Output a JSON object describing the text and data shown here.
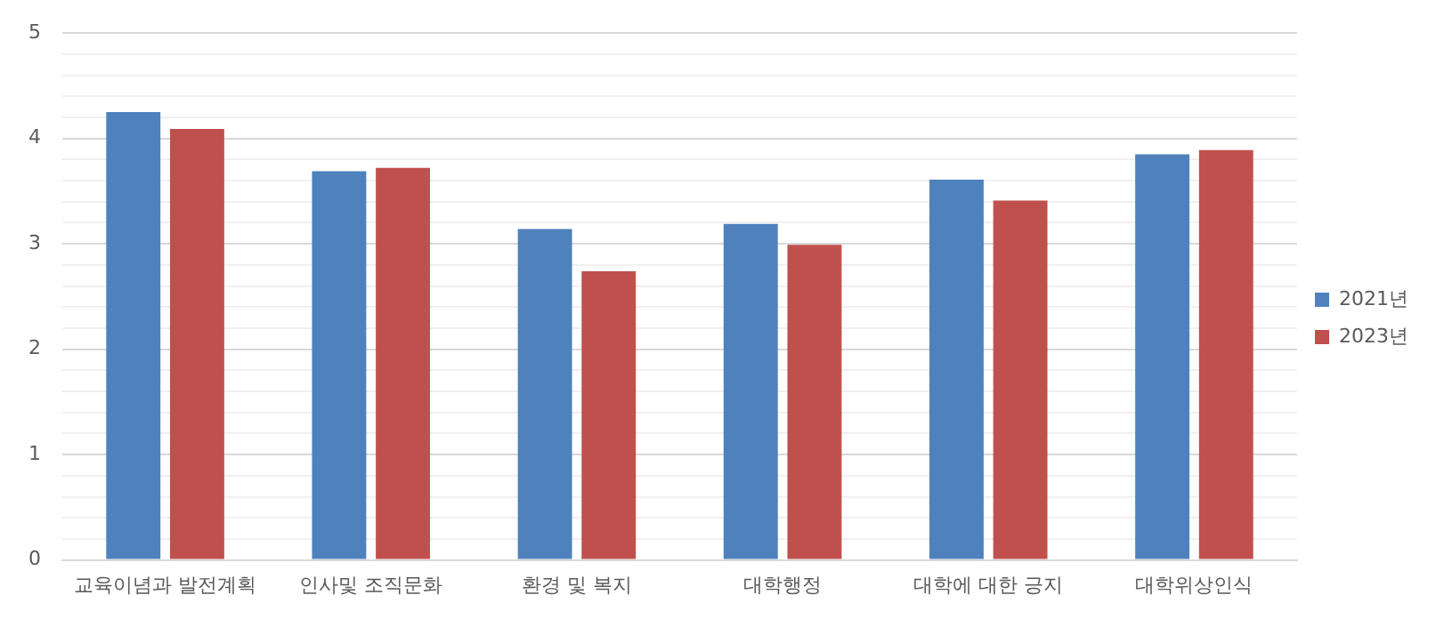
{
  "chart_data": {
    "type": "bar",
    "categories": [
      "교육이념과 발전계획",
      "인사및 조직문화",
      "환경 및 복지",
      "대학행정",
      "대학에 대한 긍지",
      "대학위상인식"
    ],
    "series": [
      {
        "name": "2021년",
        "color": "#4f81bd",
        "values": [
          4.25,
          3.69,
          3.14,
          3.19,
          3.61,
          3.85
        ]
      },
      {
        "name": "2023년",
        "color": "#c0504d",
        "values": [
          4.09,
          3.72,
          2.74,
          2.99,
          3.41,
          3.89
        ]
      }
    ],
    "ylim": [
      0,
      5
    ],
    "yticks": [
      0,
      {
        "value": 0.2,
        "label": null
      },
      {
        "value": 0.4,
        "label": null
      },
      {
        "value": 0.6,
        "label": null
      },
      {
        "value": 0.8,
        "label": null
      },
      1,
      {
        "value": 1.2,
        "label": null
      },
      {
        "value": 1.4,
        "label": null
      },
      {
        "value": 1.6,
        "label": null
      },
      {
        "value": 1.8,
        "label": null
      },
      2,
      {
        "value": 2.2,
        "label": null
      },
      {
        "value": 2.4,
        "label": null
      },
      {
        "value": 2.6,
        "label": null
      },
      {
        "value": 2.8,
        "label": null
      },
      3,
      {
        "value": 3.2,
        "label": null
      },
      {
        "value": 3.4,
        "label": null
      },
      {
        "value": 3.6,
        "label": null
      },
      {
        "value": 3.8,
        "label": null
      },
      4,
      {
        "value": 4.2,
        "label": null
      },
      {
        "value": 4.4,
        "label": null
      },
      {
        "value": 4.6,
        "label": null
      },
      {
        "value": 4.8,
        "label": null
      },
      5
    ],
    "grid": "y",
    "legend": "right"
  }
}
